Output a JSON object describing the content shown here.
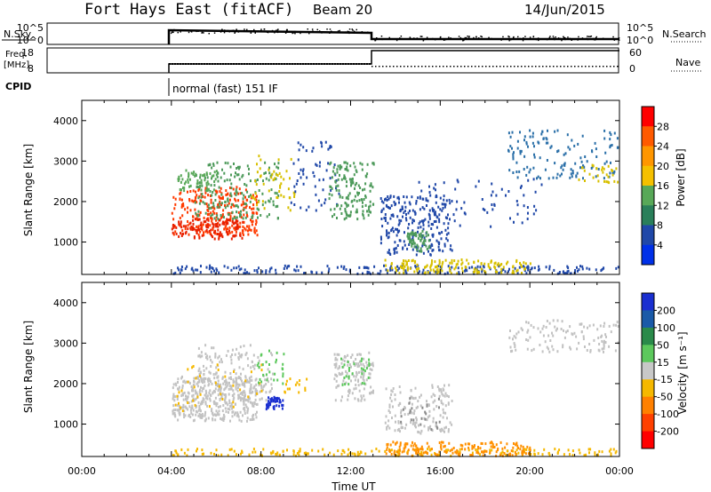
{
  "header": {
    "site": "Fort Hays East (fitACF)",
    "beam": "Beam 20",
    "date": "14/Jun/2015"
  },
  "top_panels": {
    "nsky_label": "N.Sky",
    "nsky_ticks": [
      "10^5",
      "10^0"
    ],
    "nsearch_label": "N.Search",
    "nsearch_ticks": [
      "10^5",
      "10^0"
    ],
    "freq_label_line1": "Freq.",
    "freq_label_line2": "[MHz]",
    "freq_ticks": [
      "18",
      "8"
    ],
    "nave_label": "Nave",
    "nave_ticks": [
      "60",
      "0"
    ],
    "cpid_label": "CPID",
    "cpid_text": "normal (fast) 151 IF"
  },
  "chart_data": [
    {
      "type": "heatmap",
      "name": "power",
      "ylabel": "Slant Range [km]",
      "xlabel": "",
      "xlim_hours": [
        0,
        24
      ],
      "ylim": [
        200,
        4500
      ],
      "yticks": [
        "4000",
        "3000",
        "2000",
        "1000"
      ],
      "yticks_values": [
        4000,
        3000,
        2000,
        1000
      ],
      "colorbar_label": "Power [dB]",
      "colorbar_ticks": [
        "28",
        "24",
        "20",
        "16",
        "12",
        "8",
        "4"
      ],
      "colorbar_colors": [
        "#ff0000",
        "#ff5a00",
        "#ff9600",
        "#f5c000",
        "#58a858",
        "#2a7f5a",
        "#2048a8",
        "#0030e8"
      ],
      "blobs": [
        {
          "x0": 4.0,
          "x1": 7.8,
          "y0": 1200,
          "y1": 2400,
          "color": "#ff3a00",
          "n": 260
        },
        {
          "x0": 4.0,
          "x1": 7.2,
          "y0": 1100,
          "y1": 1600,
          "color": "#e82000",
          "n": 120
        },
        {
          "x0": 5.0,
          "x1": 8.8,
          "y0": 1600,
          "y1": 3000,
          "color": "#4d9a5a",
          "n": 180
        },
        {
          "x0": 4.2,
          "x1": 6.0,
          "y0": 2300,
          "y1": 2800,
          "color": "#58a858",
          "n": 60
        },
        {
          "x0": 7.5,
          "x1": 9.5,
          "y0": 1800,
          "y1": 3200,
          "color": "#d8c000",
          "n": 50
        },
        {
          "x0": 9.3,
          "x1": 11.5,
          "y0": 1800,
          "y1": 3500,
          "color": "#2048a8",
          "n": 60
        },
        {
          "x0": 11.0,
          "x1": 13.0,
          "y0": 1600,
          "y1": 3000,
          "color": "#4d9a5a",
          "n": 150
        },
        {
          "x0": 13.3,
          "x1": 16.5,
          "y0": 700,
          "y1": 2200,
          "color": "#2048a8",
          "n": 240
        },
        {
          "x0": 14.5,
          "x1": 15.5,
          "y0": 800,
          "y1": 1300,
          "color": "#4d9a5a",
          "n": 60
        },
        {
          "x0": 15.0,
          "x1": 20.5,
          "y0": 1400,
          "y1": 2600,
          "color": "#2048a8",
          "n": 70
        },
        {
          "x0": 19.0,
          "x1": 24.0,
          "y0": 2600,
          "y1": 3800,
          "color": "#2a6fa8",
          "n": 140
        },
        {
          "x0": 22.0,
          "x1": 24.0,
          "y0": 2500,
          "y1": 3000,
          "color": "#d8c000",
          "n": 30
        },
        {
          "x0": 4.0,
          "x1": 24.0,
          "y0": 200,
          "y1": 450,
          "color": "#2048a8",
          "n": 280
        },
        {
          "x0": 13.5,
          "x1": 20.0,
          "y0": 200,
          "y1": 600,
          "color": "#d8c000",
          "n": 160
        }
      ]
    },
    {
      "type": "heatmap",
      "name": "velocity",
      "ylabel": "Slant Range [km]",
      "xlabel": "Time UT",
      "xlim_hours": [
        0,
        24
      ],
      "ylim": [
        200,
        4500
      ],
      "xticks": [
        "00:00",
        "04:00",
        "08:00",
        "12:00",
        "16:00",
        "20:00",
        "00:00"
      ],
      "xticks_values": [
        0,
        4,
        8,
        12,
        16,
        20,
        24
      ],
      "yticks": [
        "4000",
        "3000",
        "2000",
        "1000"
      ],
      "yticks_values": [
        4000,
        3000,
        2000,
        1000
      ],
      "colorbar_label": "Velocity [m s⁻¹]",
      "colorbar_ticks": [
        "200",
        "100",
        "50",
        "15",
        "-15",
        "-50",
        "-100",
        "-200"
      ],
      "colorbar_colors": [
        "#1a2fd0",
        "#1a5aa8",
        "#2a8a4a",
        "#5cc85c",
        "#c8c8c8",
        "#f5b800",
        "#ff8000",
        "#ff4000",
        "#ff0000"
      ],
      "blobs": [
        {
          "x0": 4.0,
          "x1": 7.8,
          "y0": 1100,
          "y1": 2200,
          "color": "#c2c2c2",
          "n": 420
        },
        {
          "x0": 5.0,
          "x1": 8.5,
          "y0": 1600,
          "y1": 3000,
          "color": "#c2c2c2",
          "n": 150
        },
        {
          "x0": 4.0,
          "x1": 8.0,
          "y0": 1300,
          "y1": 2500,
          "color": "#f5b800",
          "n": 40
        },
        {
          "x0": 8.2,
          "x1": 9.0,
          "y0": 1400,
          "y1": 1700,
          "color": "#1a2fd0",
          "n": 45
        },
        {
          "x0": 7.8,
          "x1": 9.0,
          "y0": 2000,
          "y1": 2900,
          "color": "#5cc85c",
          "n": 30
        },
        {
          "x0": 11.2,
          "x1": 13.0,
          "y0": 1600,
          "y1": 2800,
          "color": "#c2c2c2",
          "n": 130
        },
        {
          "x0": 11.5,
          "x1": 12.8,
          "y0": 2000,
          "y1": 2700,
          "color": "#5cc85c",
          "n": 30
        },
        {
          "x0": 13.5,
          "x1": 16.5,
          "y0": 800,
          "y1": 2000,
          "color": "#c2c2c2",
          "n": 150
        },
        {
          "x0": 14.0,
          "x1": 16.0,
          "y0": 900,
          "y1": 1700,
          "color": "#8a8a8a",
          "n": 25
        },
        {
          "x0": 19.0,
          "x1": 24.0,
          "y0": 2800,
          "y1": 3600,
          "color": "#c2c2c2",
          "n": 120
        },
        {
          "x0": 4.0,
          "x1": 24.0,
          "y0": 200,
          "y1": 420,
          "color": "#f5b800",
          "n": 240
        },
        {
          "x0": 13.5,
          "x1": 20.0,
          "y0": 200,
          "y1": 600,
          "color": "#ff9000",
          "n": 200
        },
        {
          "x0": 9.0,
          "x1": 10.0,
          "y0": 1800,
          "y1": 2200,
          "color": "#f5b800",
          "n": 15
        }
      ]
    }
  ]
}
